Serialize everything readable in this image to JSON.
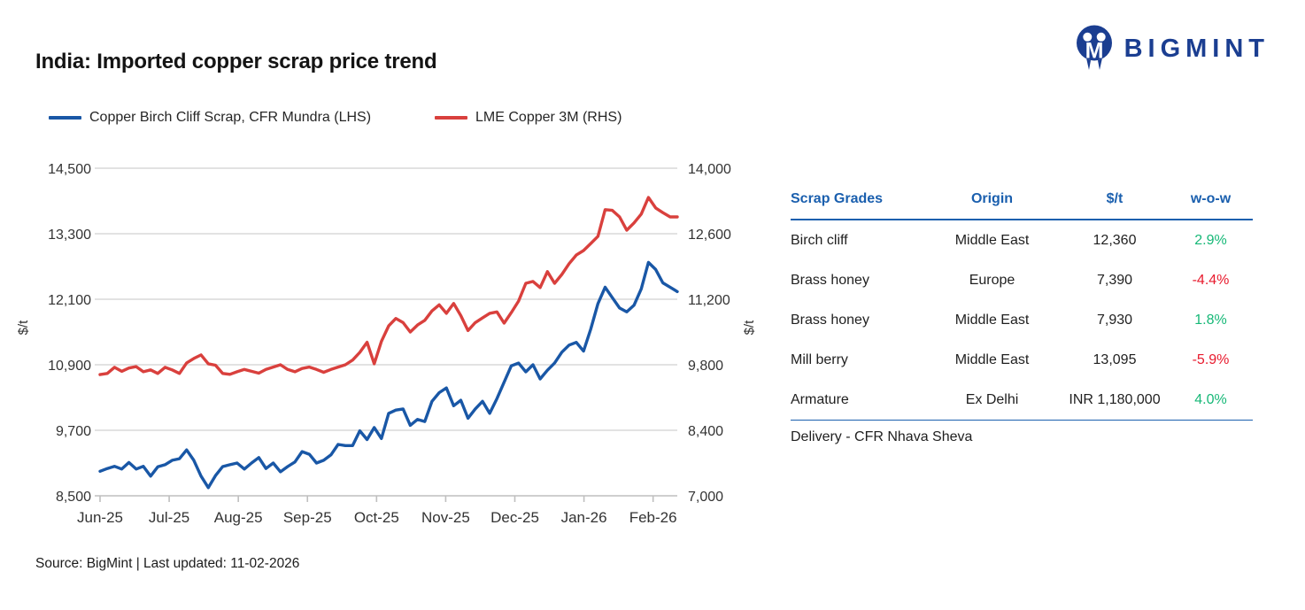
{
  "header": {
    "title": "India: Imported copper scrap price trend",
    "logo_text": "BIGMINT"
  },
  "legend": [
    {
      "label": "Copper Birch Cliff Scrap, CFR Mundra (LHS)",
      "color": "#1957a6"
    },
    {
      "label": "LME Copper 3M (RHS)",
      "color": "#d9403d"
    }
  ],
  "chart_data": {
    "type": "line",
    "title": "India: Imported copper scrap price trend",
    "x_tick_labels": [
      "Jun-25",
      "Jul-25",
      "Aug-25",
      "Sep-25",
      "Oct-25",
      "Nov-25",
      "Dec-25",
      "Jan-26",
      "Feb-26"
    ],
    "x_months_total": 8.35,
    "grid": true,
    "left_axis": {
      "label": "$/t",
      "min": 8500,
      "max": 14500,
      "ticks": [
        8500,
        9700,
        10900,
        12100,
        13300,
        14500
      ]
    },
    "right_axis": {
      "label": "$/t",
      "min": 7000,
      "max": 14000,
      "ticks": [
        7000,
        8400,
        9800,
        11200,
        12600,
        14000
      ]
    },
    "series": [
      {
        "name": "Copper Birch Cliff Scrap, CFR Mundra (LHS)",
        "axis": "left",
        "color": "#1957a6",
        "values": [
          8950,
          9000,
          9040,
          8990,
          9110,
          8990,
          9040,
          8860,
          9030,
          9070,
          9150,
          9180,
          9340,
          9150,
          8860,
          8650,
          8870,
          9035,
          9070,
          9100,
          8990,
          9100,
          9200,
          9000,
          9100,
          8940,
          9035,
          9120,
          9310,
          9260,
          9100,
          9150,
          9250,
          9440,
          9420,
          9420,
          9690,
          9530,
          9750,
          9550,
          10010,
          10070,
          10090,
          9790,
          9900,
          9860,
          10230,
          10390,
          10475,
          10150,
          10250,
          9920,
          10090,
          10230,
          10010,
          10280,
          10580,
          10880,
          10930,
          10770,
          10900,
          10640,
          10800,
          10930,
          11130,
          11260,
          11310,
          11150,
          11550,
          12020,
          12320,
          12130,
          11940,
          11870,
          11990,
          12290,
          12775,
          12645,
          12400,
          12320,
          12240
        ]
      },
      {
        "name": "LME Copper 3M (RHS)",
        "axis": "right",
        "color": "#d9403d",
        "values": [
          9590,
          9615,
          9745,
          9660,
          9730,
          9760,
          9650,
          9690,
          9615,
          9745,
          9690,
          9615,
          9840,
          9935,
          10010,
          9820,
          9790,
          9615,
          9595,
          9650,
          9700,
          9660,
          9620,
          9700,
          9750,
          9800,
          9700,
          9650,
          9720,
          9750,
          9700,
          9640,
          9700,
          9750,
          9800,
          9900,
          10065,
          10280,
          9820,
          10300,
          10630,
          10790,
          10700,
          10500,
          10650,
          10750,
          10950,
          11080,
          10900,
          11110,
          10850,
          10530,
          10700,
          10800,
          10900,
          10930,
          10690,
          10915,
          11160,
          11540,
          11580,
          11450,
          11790,
          11540,
          11730,
          11960,
          12145,
          12240,
          12390,
          12545,
          13115,
          13100,
          12960,
          12675,
          12830,
          13020,
          13375,
          13150,
          13050,
          12960,
          12960
        ]
      }
    ]
  },
  "table": {
    "headers": [
      "Scrap Grades",
      "Origin",
      "$/t",
      "w-o-w"
    ],
    "rows": [
      {
        "grade": "Birch cliff",
        "origin": "Middle East",
        "price": "12,360",
        "wow": "2.9%",
        "wow_dir": "up"
      },
      {
        "grade": "Brass honey",
        "origin": "Europe",
        "price": "7,390",
        "wow": "-4.4%",
        "wow_dir": "down"
      },
      {
        "grade": "Brass honey",
        "origin": "Middle East",
        "price": "7,930",
        "wow": "1.8%",
        "wow_dir": "up"
      },
      {
        "grade": "Mill berry",
        "origin": "Middle East",
        "price": "13,095",
        "wow": "-5.9%",
        "wow_dir": "down"
      },
      {
        "grade": "Armature",
        "origin": "Ex Delhi",
        "price": "INR 1,180,000",
        "wow": "4.0%",
        "wow_dir": "up"
      }
    ],
    "footnote": "Delivery - CFR Nhava Sheva",
    "colors": {
      "header_blue": "#1a5fae",
      "positive_green": "#16b877",
      "negative_red": "#e8192c"
    }
  },
  "footer": {
    "source": "Source: BigMint | Last updated: 11-02-2026"
  }
}
